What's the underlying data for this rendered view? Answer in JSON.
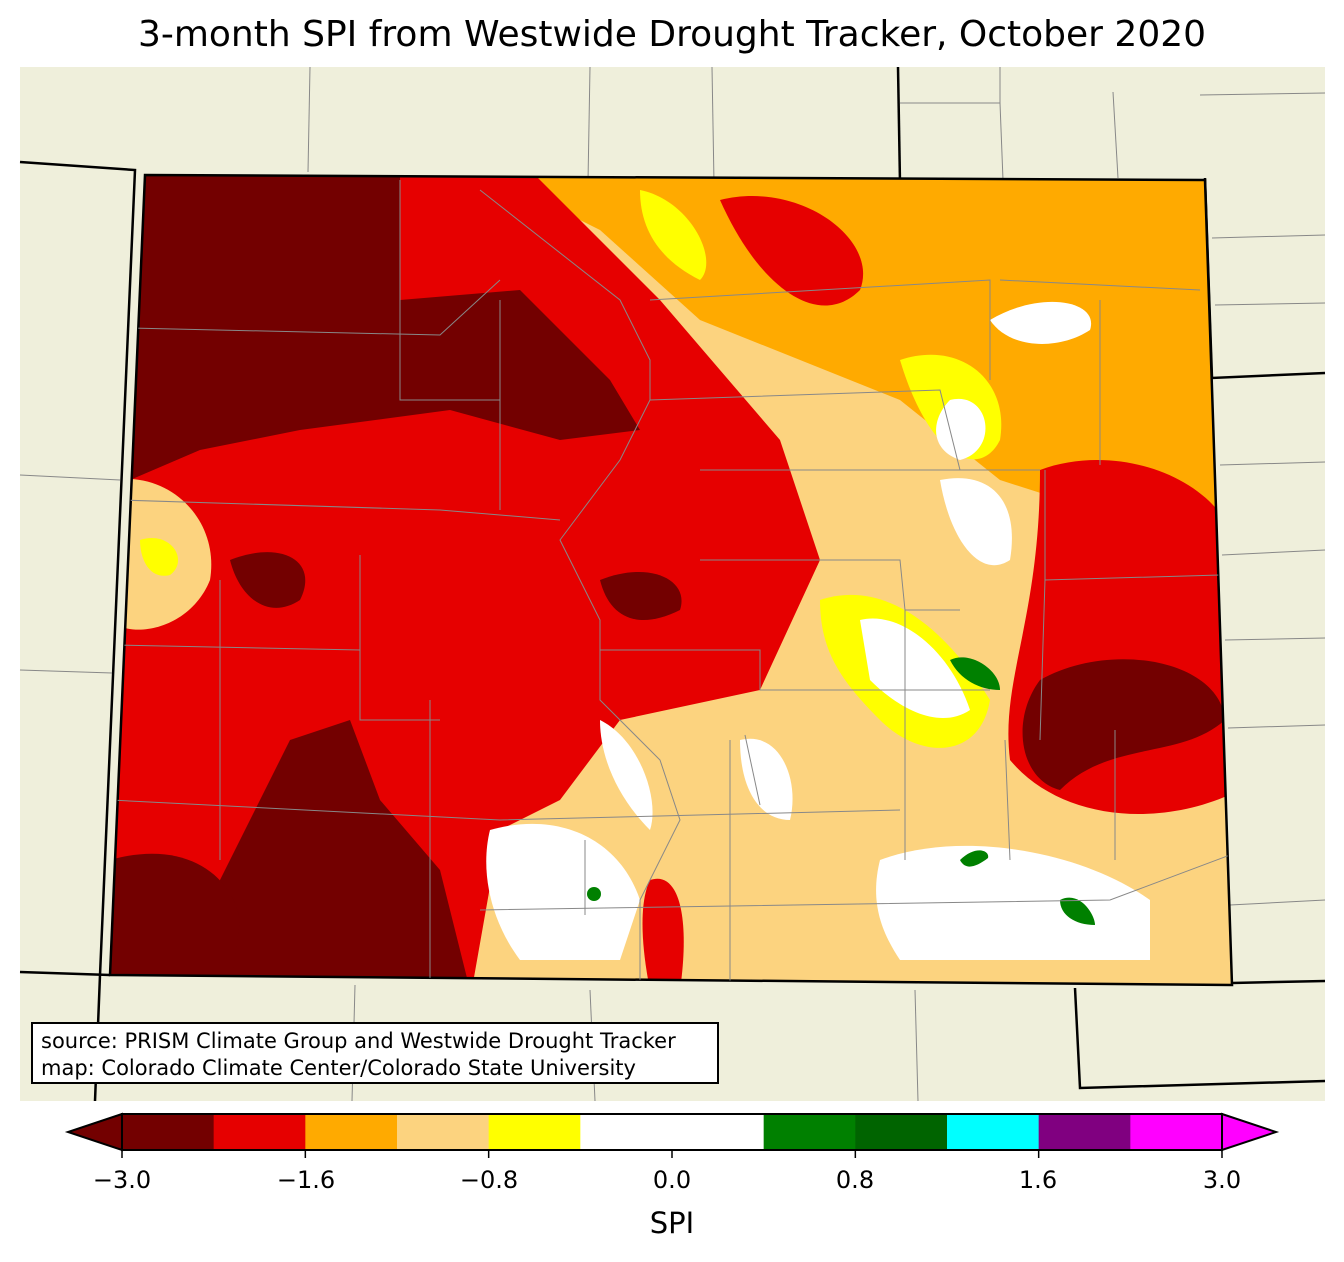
{
  "title": "3-month SPI from Westwide Drought Tracker, October 2020",
  "annotation": {
    "line1": "source: PRISM Climate Group and Westwide Drought Tracker",
    "line2": "map: Colorado Climate Center/Colorado State University"
  },
  "colorbar": {
    "label": "SPI",
    "levels": [
      -3.0,
      -2.0,
      -1.6,
      -1.3,
      -0.8,
      -0.5,
      0.0,
      0.5,
      0.8,
      1.3,
      1.6,
      2.0,
      3.0
    ],
    "colors": [
      "#730000",
      "#e60000",
      "#ffaa00",
      "#fcd37f",
      "#ffff00",
      "#ffffff",
      "#ffffff",
      "#008000",
      "#006400",
      "#00ffff",
      "#800080",
      "#ff00ff"
    ],
    "extend_low_color": "#730000",
    "extend_high_color": "#ff00ff",
    "ticks": [
      "−3.0",
      "−1.6",
      "−0.8",
      "0.0",
      "0.8",
      "1.6",
      "3.0"
    ]
  },
  "map_colors": {
    "land": "#efefdb",
    "water_none": "#ffffff"
  }
}
